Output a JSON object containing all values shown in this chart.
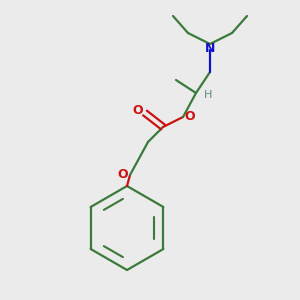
{
  "bg_color": "#ebebeb",
  "bond_color": "#3a7a3a",
  "N_color": "#1111cc",
  "O_color": "#cc1111",
  "H_color": "#5a8888",
  "lw": 1.6,
  "figsize": [
    3.0,
    3.0
  ],
  "dpi": 100,
  "xlim": [
    0,
    300
  ],
  "ylim": [
    0,
    300
  ]
}
